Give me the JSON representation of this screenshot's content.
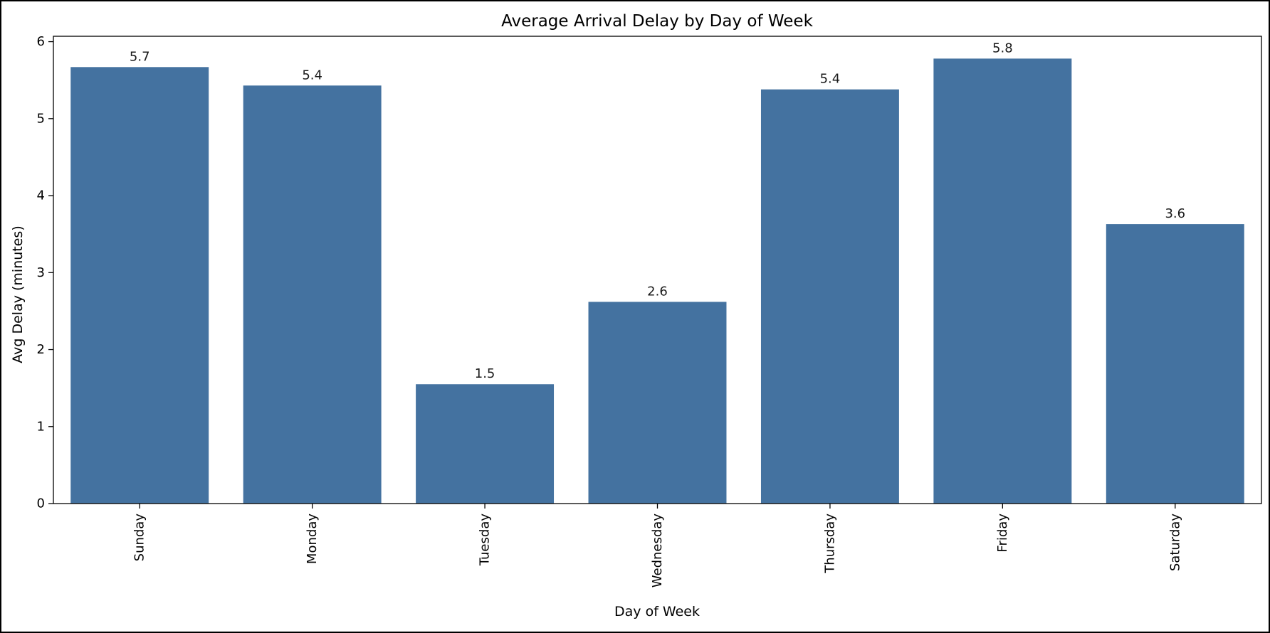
{
  "chart_data": {
    "type": "bar",
    "title": "Average Arrival Delay by Day of Week",
    "xlabel": "Day of Week",
    "ylabel": "Avg Delay (minutes)",
    "categories": [
      "Sunday",
      "Monday",
      "Tuesday",
      "Wednesday",
      "Thursday",
      "Friday",
      "Saturday"
    ],
    "values": [
      5.67,
      5.43,
      1.55,
      2.62,
      5.38,
      5.78,
      3.63
    ],
    "data_labels": [
      "5.7",
      "5.4",
      "1.5",
      "2.6",
      "5.4",
      "5.8",
      "3.6"
    ],
    "yticks": [
      "0",
      "1",
      "2",
      "3",
      "4",
      "5",
      "6"
    ],
    "ylim": [
      0,
      6.07
    ],
    "grid": false,
    "legend": "none",
    "colors": {
      "bar": "#4472a0",
      "frame": "#000000",
      "background": "#ffffff"
    }
  }
}
